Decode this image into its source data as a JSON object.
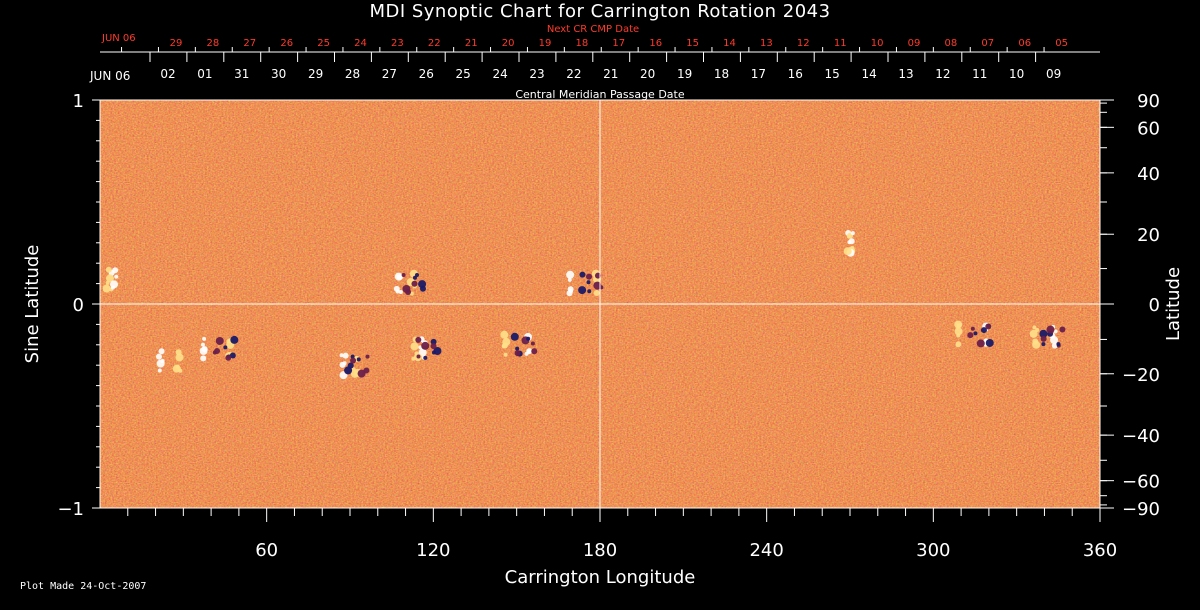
{
  "chart_data": {
    "type": "heatmap",
    "title": "MDI Synoptic Chart for Carrington Rotation 2043",
    "xlabel": "Carrington Longitude",
    "ylabel_left": "Sine Latitude",
    "ylabel_right": "Latitude",
    "xlim": [
      0,
      360
    ],
    "ylim": [
      -1,
      1
    ],
    "x_ticks": [
      60,
      120,
      180,
      240,
      300,
      360
    ],
    "y_ticks_left": [
      "1",
      "0",
      "−1"
    ],
    "y_ticks_right": [
      "90",
      "60",
      "40",
      "20",
      "0",
      "−20",
      "−40",
      "−60",
      "−90"
    ],
    "y_ticks_right_values": [
      90,
      60,
      40,
      20,
      0,
      -20,
      -40,
      -60,
      -90
    ],
    "top_axis_upper": {
      "caption": "Next CR CMP Date",
      "start_label": "JUN 06",
      "days": [
        "29",
        "28",
        "27",
        "26",
        "25",
        "24",
        "23",
        "22",
        "21",
        "20",
        "19",
        "18",
        "17",
        "16",
        "15",
        "14",
        "13",
        "12",
        "11",
        "10",
        "09",
        "08",
        "07",
        "06",
        "05"
      ]
    },
    "top_axis_lower": {
      "caption": "Central Meridian Passage Date",
      "start_label": "JUN 06",
      "days": [
        "02",
        "01",
        "31",
        "30",
        "29",
        "28",
        "27",
        "26",
        "25",
        "24",
        "23",
        "22",
        "21",
        "20",
        "19",
        "18",
        "17",
        "16",
        "15",
        "14",
        "13",
        "12",
        "11",
        "10",
        "09"
      ]
    },
    "grid": "crosshair at longitude 180 and sine latitude 0",
    "colormap": [
      "#1a1a66",
      "#6a1f4a",
      "#c8331a",
      "#f05a1a",
      "#ff9a3a",
      "#ffe08a",
      "#ffffff"
    ],
    "active_regions": [
      {
        "lon": 4,
        "sinlat": 0.12,
        "polarity": "positive"
      },
      {
        "lon": 110,
        "sinlat": 0.1,
        "polarity": "mixed"
      },
      {
        "lon": 174,
        "sinlat": 0.1,
        "polarity": "mixed"
      },
      {
        "lon": 42,
        "sinlat": -0.22,
        "polarity": "mixed"
      },
      {
        "lon": 90,
        "sinlat": -0.3,
        "polarity": "mixed"
      },
      {
        "lon": 115,
        "sinlat": -0.22,
        "polarity": "mixed"
      },
      {
        "lon": 150,
        "sinlat": -0.2,
        "polarity": "mixed"
      },
      {
        "lon": 314,
        "sinlat": -0.15,
        "polarity": "mixed"
      },
      {
        "lon": 340,
        "sinlat": -0.16,
        "polarity": "mixed"
      },
      {
        "lon": 270,
        "sinlat": 0.3,
        "polarity": "positive"
      },
      {
        "lon": 25,
        "sinlat": -0.28,
        "polarity": "positive"
      }
    ]
  },
  "footer": "Plot Made 24-Oct-2007"
}
